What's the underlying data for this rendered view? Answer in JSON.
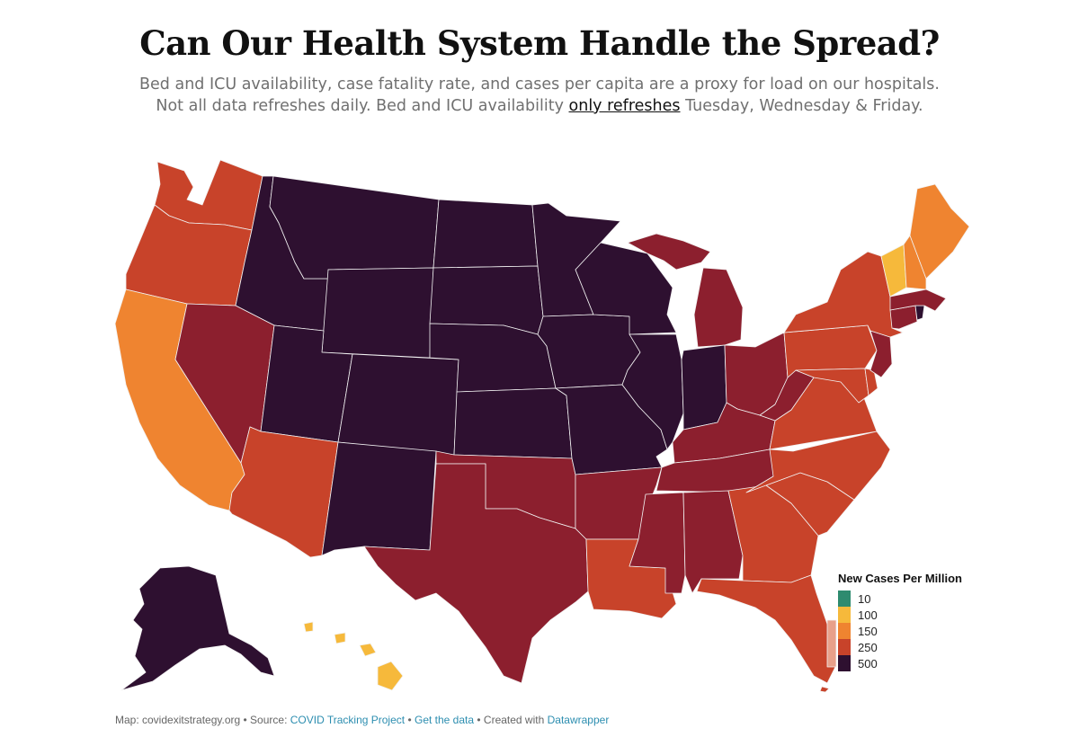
{
  "header": {
    "title": "Can Our Health System Handle the Spread?",
    "subtitle_line1": "Bed and ICU availability, case fatality rate, and cases per capita are a proxy for load on our hospitals.",
    "subtitle_line2_pre": "Not all data refreshes daily. Bed and ICU availability ",
    "subtitle_link": "only refreshes",
    "subtitle_line2_post": " Tuesday, Wednesday & Friday."
  },
  "legend": {
    "title": "New Cases Per Million",
    "items": [
      {
        "label": "10",
        "color": "#2e8b6f"
      },
      {
        "label": "100",
        "color": "#f6b93b"
      },
      {
        "label": "150",
        "color": "#ef8430"
      },
      {
        "label": "250",
        "color": "#c8432a"
      },
      {
        "label": "500",
        "color": "#2e1030"
      }
    ]
  },
  "map_colors": {
    "dark": "#2e1030",
    "crimson": "#8c1f2e",
    "red_orange": "#c8432a",
    "orange": "#ef8430",
    "yellow": "#f6b93b",
    "sliver": "#e8a08a"
  },
  "footer": {
    "prefix": "Map: covidexitstrategy.org • Source: ",
    "link1": "COVID Tracking Project",
    "sep1": " • ",
    "link2": "Get the data",
    "sep2": " • Created with ",
    "link3": "Datawrapper"
  }
}
